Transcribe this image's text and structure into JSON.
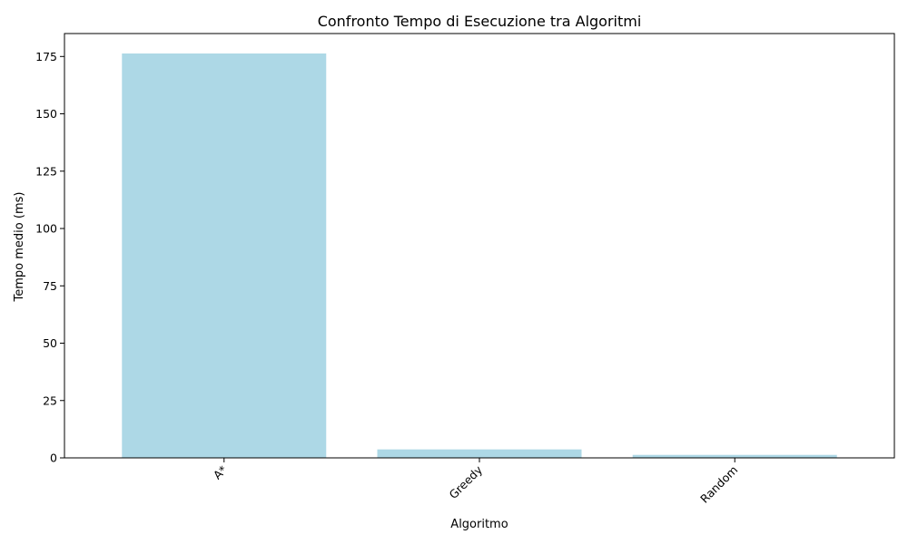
{
  "chart_data": {
    "type": "bar",
    "title": "Confronto Tempo di Esecuzione tra Algoritmi",
    "xlabel": "Algoritmo",
    "ylabel": "Tempo medio (ms)",
    "categories": [
      "A*",
      "Greedy",
      "Random"
    ],
    "values": [
      176.3,
      3.7,
      1.3
    ],
    "ylim": [
      0,
      185
    ],
    "yticks": [
      0,
      25,
      50,
      75,
      100,
      125,
      150,
      175
    ],
    "bar_color": "#add8e6",
    "grid": false,
    "legend": "none",
    "xtick_rotation": -45
  }
}
